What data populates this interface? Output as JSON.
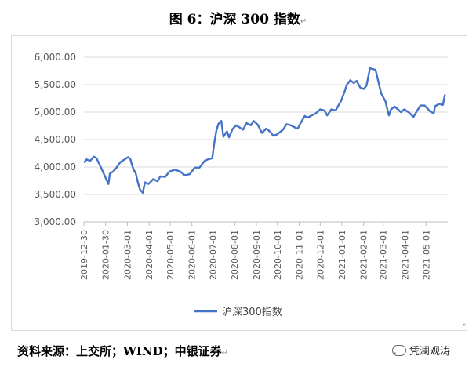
{
  "figure": {
    "title": "图 6：沪深 300 指数",
    "return_mark": "↵",
    "source": "资料来源：上交所；WIND；中银证券",
    "watermark": "凭澜观涛"
  },
  "chart_data": {
    "type": "line",
    "y_ticks": [
      "3,000.00",
      "3,500.00",
      "4,000.00",
      "4,500.00",
      "5,000.00",
      "5,500.00",
      "6,000.00"
    ],
    "ylim": [
      3000,
      6000
    ],
    "x_ticks": [
      "2019-12-30",
      "2020-01-30",
      "2020-03-01",
      "2020-04-01",
      "2020-05-01",
      "2020-06-01",
      "2020-07-01",
      "2020-08-01",
      "2020-09-01",
      "2020-10-01",
      "2020-11-01",
      "2020-12-01",
      "2021-01-01",
      "2021-02-01",
      "2021-03-01",
      "2021-04-01",
      "2021-05-01"
    ],
    "grid": true,
    "legend_position": "bottom",
    "series": [
      {
        "name": "沪深300指数",
        "color": "#4472C4",
        "points": [
          [
            "2019-12-30",
            4080
          ],
          [
            "2020-01-03",
            4140
          ],
          [
            "2020-01-08",
            4110
          ],
          [
            "2020-01-13",
            4190
          ],
          [
            "2020-01-17",
            4160
          ],
          [
            "2020-01-23",
            4000
          ],
          [
            "2020-02-03",
            3690
          ],
          [
            "2020-02-05",
            3880
          ],
          [
            "2020-02-10",
            3920
          ],
          [
            "2020-02-14",
            3980
          ],
          [
            "2020-02-20",
            4090
          ],
          [
            "2020-02-25",
            4130
          ],
          [
            "2020-03-02",
            4180
          ],
          [
            "2020-03-05",
            4150
          ],
          [
            "2020-03-09",
            3980
          ],
          [
            "2020-03-13",
            3880
          ],
          [
            "2020-03-16",
            3720
          ],
          [
            "2020-03-19",
            3590
          ],
          [
            "2020-03-23",
            3530
          ],
          [
            "2020-03-26",
            3720
          ],
          [
            "2020-03-31",
            3690
          ],
          [
            "2020-04-07",
            3780
          ],
          [
            "2020-04-13",
            3740
          ],
          [
            "2020-04-17",
            3830
          ],
          [
            "2020-04-24",
            3820
          ],
          [
            "2020-04-30",
            3920
          ],
          [
            "2020-05-08",
            3950
          ],
          [
            "2020-05-15",
            3920
          ],
          [
            "2020-05-22",
            3850
          ],
          [
            "2020-05-29",
            3870
          ],
          [
            "2020-06-05",
            3990
          ],
          [
            "2020-06-12",
            3990
          ],
          [
            "2020-06-19",
            4110
          ],
          [
            "2020-06-24",
            4140
          ],
          [
            "2020-06-30",
            4160
          ],
          [
            "2020-07-03",
            4440
          ],
          [
            "2020-07-06",
            4670
          ],
          [
            "2020-07-09",
            4790
          ],
          [
            "2020-07-13",
            4840
          ],
          [
            "2020-07-16",
            4550
          ],
          [
            "2020-07-21",
            4650
          ],
          [
            "2020-07-24",
            4540
          ],
          [
            "2020-07-29",
            4690
          ],
          [
            "2020-08-03",
            4760
          ],
          [
            "2020-08-07",
            4730
          ],
          [
            "2020-08-13",
            4680
          ],
          [
            "2020-08-18",
            4800
          ],
          [
            "2020-08-24",
            4760
          ],
          [
            "2020-08-28",
            4840
          ],
          [
            "2020-09-03",
            4770
          ],
          [
            "2020-09-09",
            4620
          ],
          [
            "2020-09-15",
            4700
          ],
          [
            "2020-09-21",
            4640
          ],
          [
            "2020-09-25",
            4570
          ],
          [
            "2020-09-30",
            4590
          ],
          [
            "2020-10-09",
            4680
          ],
          [
            "2020-10-14",
            4780
          ],
          [
            "2020-10-20",
            4760
          ],
          [
            "2020-10-26",
            4720
          ],
          [
            "2020-10-30",
            4700
          ],
          [
            "2020-11-03",
            4800
          ],
          [
            "2020-11-09",
            4930
          ],
          [
            "2020-11-13",
            4900
          ],
          [
            "2020-11-19",
            4940
          ],
          [
            "2020-11-25",
            4980
          ],
          [
            "2020-12-01",
            5050
          ],
          [
            "2020-12-07",
            5030
          ],
          [
            "2020-12-11",
            4940
          ],
          [
            "2020-12-17",
            5050
          ],
          [
            "2020-12-23",
            5030
          ],
          [
            "2020-12-31",
            5210
          ],
          [
            "2021-01-05",
            5380
          ],
          [
            "2021-01-08",
            5500
          ],
          [
            "2021-01-13",
            5580
          ],
          [
            "2021-01-18",
            5530
          ],
          [
            "2021-01-22",
            5570
          ],
          [
            "2021-01-27",
            5450
          ],
          [
            "2021-02-01",
            5420
          ],
          [
            "2021-02-05",
            5480
          ],
          [
            "2021-02-10",
            5800
          ],
          [
            "2021-02-18",
            5770
          ],
          [
            "2021-02-23",
            5500
          ],
          [
            "2021-02-26",
            5340
          ],
          [
            "2021-03-04",
            5200
          ],
          [
            "2021-03-09",
            4940
          ],
          [
            "2021-03-12",
            5050
          ],
          [
            "2021-03-17",
            5100
          ],
          [
            "2021-03-22",
            5050
          ],
          [
            "2021-03-26",
            5000
          ],
          [
            "2021-03-31",
            5050
          ],
          [
            "2021-04-07",
            4990
          ],
          [
            "2021-04-13",
            4910
          ],
          [
            "2021-04-19",
            5040
          ],
          [
            "2021-04-23",
            5120
          ],
          [
            "2021-04-29",
            5120
          ],
          [
            "2021-05-07",
            5010
          ],
          [
            "2021-05-12",
            4980
          ],
          [
            "2021-05-14",
            5110
          ],
          [
            "2021-05-20",
            5150
          ],
          [
            "2021-05-25",
            5130
          ],
          [
            "2021-05-28",
            5320
          ]
        ]
      }
    ]
  }
}
